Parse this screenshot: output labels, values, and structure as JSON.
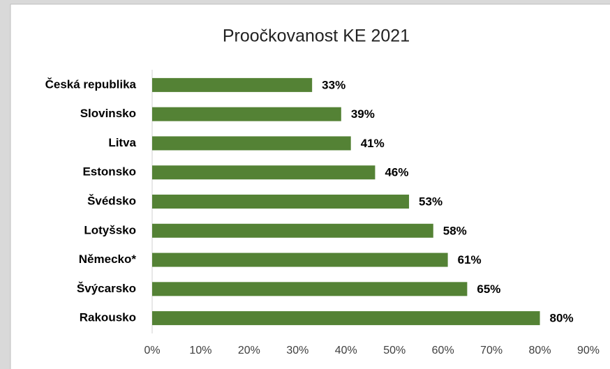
{
  "chart_data": {
    "type": "barh",
    "title": "Proočkovanost KE 2021",
    "categories": [
      "Česká republika",
      "Slovinsko",
      "Litva",
      "Estonsko",
      "Švédsko",
      "Lotyšsko",
      "Německo*",
      "Švýcarsko",
      "Rakousko"
    ],
    "values": [
      33,
      39,
      41,
      46,
      53,
      58,
      61,
      65,
      80
    ],
    "value_labels": [
      "33%",
      "39%",
      "41%",
      "46%",
      "53%",
      "58%",
      "61%",
      "65%",
      "80%"
    ],
    "color": "#548235",
    "xlim": [
      0,
      90
    ],
    "xticks": [
      {
        "value": 0,
        "label": "0%"
      },
      {
        "value": 10,
        "label": "10%"
      },
      {
        "value": 20,
        "label": "20%"
      },
      {
        "value": 30,
        "label": "30%"
      },
      {
        "value": 40,
        "label": "40%"
      },
      {
        "value": 50,
        "label": "50%"
      },
      {
        "value": 60,
        "label": "60%"
      },
      {
        "value": 70,
        "label": "70%"
      },
      {
        "value": 80,
        "label": "80%"
      },
      {
        "value": 90,
        "label": "90%"
      }
    ],
    "grid": false
  }
}
